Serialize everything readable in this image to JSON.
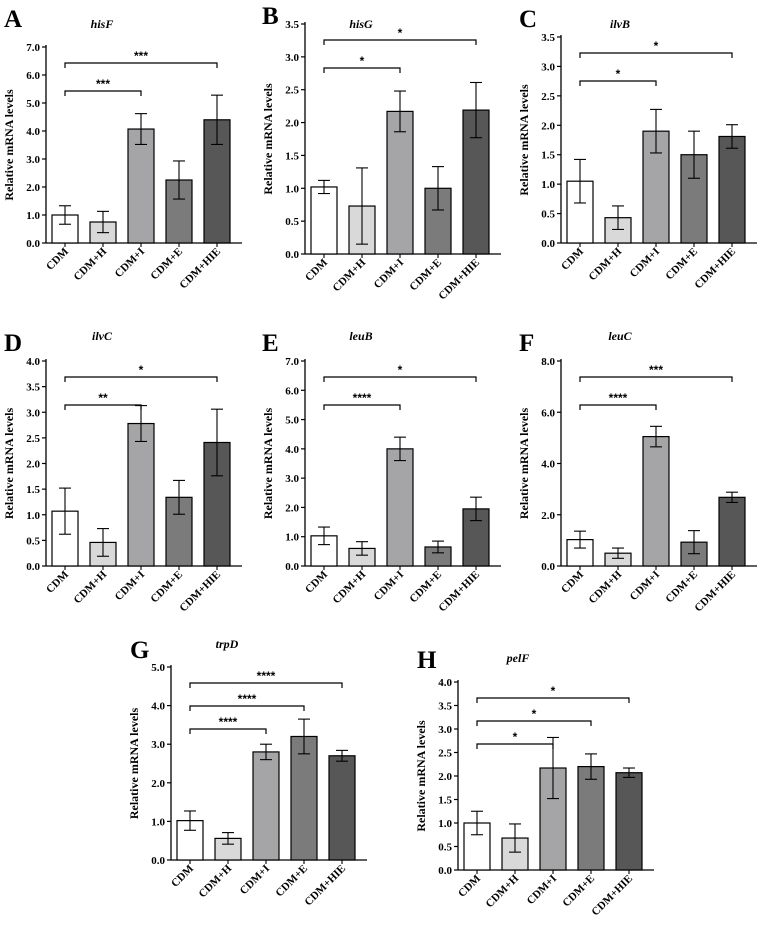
{
  "chart_data": [
    {
      "type": "bar",
      "panel": "A",
      "gene": "hisF",
      "ylabel": "Relative mRNA levels",
      "categories": [
        "CDM",
        "CDM+H",
        "CDM+I",
        "CDM+E",
        "CDM+HIE"
      ],
      "values": [
        1.0,
        0.75,
        4.07,
        2.25,
        4.4
      ],
      "errors": [
        0.33,
        0.38,
        0.55,
        0.68,
        0.88
      ],
      "ylim": [
        0,
        7
      ],
      "yticks": [
        "0.0",
        "1.0",
        "2.0",
        "3.0",
        "4.0",
        "5.0",
        "6.0",
        "7.0"
      ],
      "significance": [
        {
          "from": 0,
          "to": 2,
          "label": "***"
        },
        {
          "from": 0,
          "to": 4,
          "label": "***"
        }
      ]
    },
    {
      "type": "bar",
      "panel": "B",
      "gene": "hisG",
      "ylabel": "Relative mRNA levels",
      "categories": [
        "CDM",
        "CDM+H",
        "CDM+I",
        "CDM+E",
        "CDM+HIE"
      ],
      "values": [
        1.02,
        0.73,
        2.17,
        1.0,
        2.19
      ],
      "errors": [
        0.1,
        0.58,
        0.31,
        0.33,
        0.42
      ],
      "ylim": [
        0,
        3.5
      ],
      "yticks": [
        "0.0",
        "0.5",
        "1.0",
        "1.5",
        "2.0",
        "2.5",
        "3.0",
        "3.5"
      ],
      "significance": [
        {
          "from": 0,
          "to": 2,
          "label": "*"
        },
        {
          "from": 0,
          "to": 4,
          "label": "*"
        }
      ]
    },
    {
      "type": "bar",
      "panel": "C",
      "gene": "ilvB",
      "ylabel": "Relative mRNA levels",
      "categories": [
        "CDM",
        "CDM+H",
        "CDM+I",
        "CDM+E",
        "CDM+HIE"
      ],
      "values": [
        1.05,
        0.43,
        1.9,
        1.5,
        1.81
      ],
      "errors": [
        0.37,
        0.2,
        0.37,
        0.4,
        0.2
      ],
      "ylim": [
        0,
        3.5
      ],
      "yticks": [
        "0.0",
        "0.5",
        "1.0",
        "1.5",
        "2.0",
        "2.5",
        "3.0",
        "3.5"
      ],
      "significance": [
        {
          "from": 0,
          "to": 2,
          "label": "*"
        },
        {
          "from": 0,
          "to": 4,
          "label": "*"
        }
      ]
    },
    {
      "type": "bar",
      "panel": "D",
      "gene": "ilvC",
      "ylabel": "Relative mRNA levels",
      "categories": [
        "CDM",
        "CDM+H",
        "CDM+I",
        "CDM+E",
        "CDM+HIE"
      ],
      "values": [
        1.07,
        0.46,
        2.78,
        1.34,
        2.41
      ],
      "errors": [
        0.45,
        0.27,
        0.35,
        0.33,
        0.65
      ],
      "ylim": [
        0,
        4.0
      ],
      "yticks": [
        "0.0",
        "0.5",
        "1.0",
        "1.5",
        "2.0",
        "2.5",
        "3.0",
        "3.5",
        "4.0"
      ],
      "significance": [
        {
          "from": 0,
          "to": 2,
          "label": "**"
        },
        {
          "from": 0,
          "to": 4,
          "label": "*"
        }
      ]
    },
    {
      "type": "bar",
      "panel": "E",
      "gene": "leuB",
      "ylabel": "Relative mRNA levels",
      "categories": [
        "CDM",
        "CDM+H",
        "CDM+I",
        "CDM+E",
        "CDM+HIE"
      ],
      "values": [
        1.03,
        0.6,
        4.0,
        0.65,
        1.95
      ],
      "errors": [
        0.3,
        0.23,
        0.4,
        0.2,
        0.4
      ],
      "ylim": [
        0,
        7
      ],
      "yticks": [
        "0.0",
        "1.0",
        "2.0",
        "3.0",
        "4.0",
        "5.0",
        "6.0",
        "7.0"
      ],
      "significance": [
        {
          "from": 0,
          "to": 2,
          "label": "****"
        },
        {
          "from": 0,
          "to": 4,
          "label": "*"
        }
      ]
    },
    {
      "type": "bar",
      "panel": "F",
      "gene": "leuC",
      "ylabel": "Relative mRNA levels",
      "categories": [
        "CDM",
        "CDM+H",
        "CDM+I",
        "CDM+E",
        "CDM+HIE"
      ],
      "values": [
        1.03,
        0.5,
        5.05,
        0.93,
        2.68
      ],
      "errors": [
        0.33,
        0.2,
        0.4,
        0.45,
        0.2
      ],
      "ylim": [
        0,
        8
      ],
      "yticks": [
        "0.0",
        "2.0",
        "4.0",
        "6.0",
        "8.0"
      ],
      "significance": [
        {
          "from": 0,
          "to": 2,
          "label": "****"
        },
        {
          "from": 0,
          "to": 4,
          "label": "***"
        }
      ]
    },
    {
      "type": "bar",
      "panel": "G",
      "gene": "trpD",
      "ylabel": "Relative mRNA levels",
      "categories": [
        "CDM",
        "CDM+H",
        "CDM+I",
        "CDM+E",
        "CDM+HIE"
      ],
      "values": [
        1.02,
        0.56,
        2.8,
        3.2,
        2.7
      ],
      "errors": [
        0.25,
        0.15,
        0.2,
        0.45,
        0.14
      ],
      "ylim": [
        0,
        5
      ],
      "yticks": [
        "0.0",
        "1.0",
        "2.0",
        "3.0",
        "4.0",
        "5.0"
      ],
      "significance": [
        {
          "from": 0,
          "to": 2,
          "label": "****"
        },
        {
          "from": 0,
          "to": 3,
          "label": "****"
        },
        {
          "from": 0,
          "to": 4,
          "label": "****"
        }
      ]
    },
    {
      "type": "bar",
      "panel": "H",
      "gene": "pelF",
      "ylabel": "Relative mRNA levels",
      "categories": [
        "CDM",
        "CDM+H",
        "CDM+I",
        "CDM+E",
        "CDM+HIE"
      ],
      "values": [
        1.0,
        0.68,
        2.17,
        2.2,
        2.07
      ],
      "errors": [
        0.25,
        0.3,
        0.65,
        0.27,
        0.1
      ],
      "ylim": [
        0,
        4.0
      ],
      "yticks": [
        "0.0",
        "0.5",
        "1.0",
        "1.5",
        "2.0",
        "2.5",
        "3.0",
        "3.5",
        "4.0"
      ],
      "significance": [
        {
          "from": 0,
          "to": 2,
          "label": "*"
        },
        {
          "from": 0,
          "to": 3,
          "label": "*"
        },
        {
          "from": 0,
          "to": 4,
          "label": "*"
        }
      ]
    }
  ],
  "bar_fills": [
    "#ffffff",
    "#d9d9d9",
    "#a5a5a7",
    "#7b7b7b",
    "#575757"
  ],
  "bar_stroke": "#000000"
}
